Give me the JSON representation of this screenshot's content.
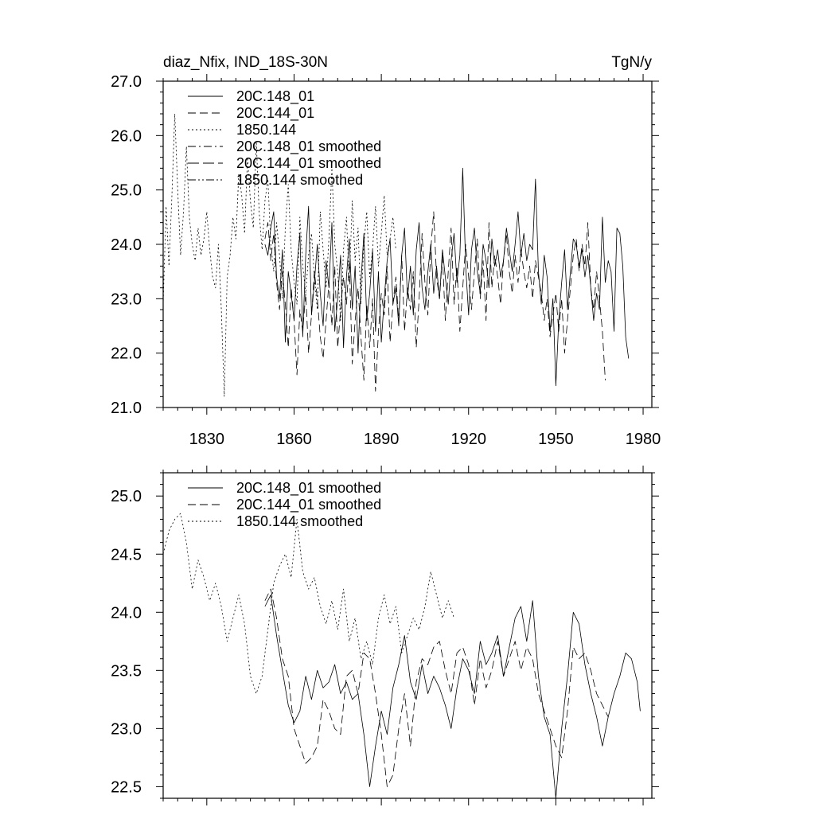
{
  "chart_data": [
    {
      "type": "line",
      "title_left": "diaz_Nfix, IND_18S-30N",
      "title_right": "TgN/y",
      "xlim": [
        1815,
        1983
      ],
      "ylim": [
        21.0,
        27.0
      ],
      "x_ticks": [
        1830,
        1860,
        1890,
        1920,
        1950,
        1980
      ],
      "x_tick_labels": [
        "1830",
        "1860",
        "1890",
        "1920",
        "1950",
        "1980"
      ],
      "y_ticks": [
        21.0,
        22.0,
        23.0,
        24.0,
        25.0,
        26.0,
        27.0
      ],
      "y_tick_labels": [
        "21.0",
        "22.0",
        "23.0",
        "24.0",
        "25.0",
        "26.0",
        "27.0"
      ],
      "legend": [
        {
          "label": "20C.148_01",
          "style": "solid"
        },
        {
          "label": "20C.144_01",
          "style": "dash"
        },
        {
          "label": "1850.144",
          "style": "dot"
        },
        {
          "label": "20C.148_01 smoothed",
          "style": "dashdot"
        },
        {
          "label": "20C.144_01 smoothed",
          "style": "longdash"
        },
        {
          "label": "1850.144 smoothed",
          "style": "dashdotdot"
        }
      ],
      "series": [
        {
          "name": "20C.148_01",
          "style": "solid",
          "x_start": 1850,
          "values": [
            24.0,
            23.8,
            24.3,
            24.6,
            23.4,
            23.0,
            23.9,
            22.2,
            23.5,
            23.1,
            22.6,
            23.6,
            24.2,
            22.3,
            23.8,
            24.7,
            22.7,
            23.3,
            24.0,
            23.1,
            22.5,
            23.7,
            23.2,
            24.4,
            22.4,
            23.0,
            23.8,
            22.1,
            23.4,
            24.1,
            22.8,
            23.6,
            22.0,
            23.3,
            24.2,
            22.6,
            23.1,
            23.9,
            22.4,
            23.5,
            22.2,
            23.0,
            23.7,
            24.1,
            22.9,
            23.2,
            22.5,
            23.8,
            24.3,
            23.0,
            23.6,
            22.7,
            23.9,
            24.4,
            23.2,
            22.8,
            23.5,
            24.0,
            23.1,
            23.6,
            23.0,
            23.9,
            23.4,
            22.9,
            23.7,
            24.2,
            23.3,
            23.8,
            25.4,
            23.6,
            22.7,
            23.9,
            24.3,
            23.5,
            23.1,
            24.0,
            23.7,
            23.2,
            24.1,
            23.6,
            23.9,
            23.4,
            23.7,
            24.3,
            23.9,
            23.5,
            24.0,
            24.6,
            23.8,
            24.2,
            23.7,
            24.0,
            23.9,
            25.2,
            23.5,
            22.9,
            23.8,
            23.4,
            22.4,
            23.0,
            21.4,
            22.6,
            23.3,
            23.9,
            22.8,
            23.5,
            24.1,
            24.0,
            23.6,
            23.9,
            23.4,
            23.8,
            23.2,
            22.6,
            23.1,
            22.8,
            24.5,
            23.3,
            23.7,
            23.5,
            22.4,
            24.3,
            24.2,
            23.6,
            22.3,
            21.9
          ]
        },
        {
          "name": "20C.144_01",
          "style": "dash",
          "x_start": 1850,
          "values": [
            24.1,
            24.4,
            23.7,
            24.2,
            23.3,
            22.8,
            23.5,
            22.9,
            22.1,
            23.2,
            22.6,
            21.6,
            22.8,
            22.4,
            23.1,
            22.0,
            22.7,
            23.5,
            23.0,
            22.3,
            21.9,
            22.6,
            23.3,
            22.5,
            23.6,
            22.1,
            22.8,
            23.4,
            22.9,
            23.7,
            21.8,
            22.6,
            23.2,
            22.3,
            21.5,
            22.9,
            22.1,
            23.0,
            21.3,
            22.4,
            23.1,
            22.7,
            23.6,
            22.2,
            22.9,
            23.4,
            22.6,
            23.8,
            22.4,
            23.2,
            22.8,
            23.5,
            22.1,
            23.0,
            24.2,
            23.3,
            22.7,
            23.9,
            24.6,
            23.4,
            23.0,
            23.8,
            22.6,
            23.5,
            24.3,
            22.9,
            23.6,
            22.4,
            23.2,
            24.0,
            23.4,
            22.8,
            23.5,
            24.1,
            23.0,
            23.7,
            22.6,
            24.4,
            23.2,
            23.8,
            23.4,
            22.9,
            23.7,
            24.2,
            23.5,
            23.1,
            23.8,
            23.3,
            23.9,
            23.5,
            23.2,
            23.6,
            23.0,
            23.7,
            23.4,
            23.1,
            22.6,
            23.0,
            22.3,
            22.7,
            23.1,
            22.4,
            23.0,
            22.0,
            22.6,
            23.2,
            23.8,
            24.1,
            23.5,
            24.0,
            23.6,
            24.4,
            23.2,
            22.8,
            23.5,
            23.0,
            22.4,
            21.5
          ]
        },
        {
          "name": "1850.144",
          "style": "dot",
          "x_start": 1815,
          "values": [
            22.9,
            24.7,
            23.6,
            24.9,
            26.4,
            25.0,
            23.8,
            24.6,
            25.8,
            24.5,
            24.0,
            23.7,
            24.3,
            23.8,
            24.1,
            24.6,
            23.9,
            23.4,
            23.2,
            24.0,
            22.8,
            21.2,
            23.4,
            23.8,
            24.5,
            24.1,
            25.3,
            24.9,
            24.2,
            25.6,
            24.8,
            24.3,
            25.9,
            24.6,
            23.9,
            24.8,
            25.2,
            24.0,
            23.5,
            24.4,
            23.8,
            23.0,
            24.3,
            25.1,
            23.9,
            23.3,
            22.9,
            24.5,
            23.6,
            23.1,
            23.8,
            24.2,
            23.4,
            22.8,
            24.6,
            23.9,
            23.2,
            24.1,
            25.4,
            24.0,
            23.5,
            22.6,
            23.9,
            24.5,
            23.3,
            24.8,
            23.7,
            24.3,
            22.9,
            24.0,
            24.6,
            23.4,
            23.9,
            24.7,
            23.6,
            24.2,
            24.9,
            23.8,
            24.1,
            24.5,
            23.9
          ]
        }
      ]
    },
    {
      "type": "line",
      "xlim": [
        1815,
        1983
      ],
      "ylim": [
        22.4,
        25.2
      ],
      "x_ticks": [
        1830,
        1860,
        1890,
        1920,
        1950,
        1980
      ],
      "y_ticks": [
        22.5,
        23.0,
        23.5,
        24.0,
        24.5,
        25.0
      ],
      "y_tick_labels": [
        "22.5",
        "23.0",
        "23.5",
        "24.0",
        "24.5",
        "25.0"
      ],
      "legend": [
        {
          "label": "20C.148_01 smoothed",
          "style": "solid"
        },
        {
          "label": "20C.144_01 smoothed",
          "style": "dash"
        },
        {
          "label": "1850.144 smoothed",
          "style": "dot"
        }
      ],
      "series": [
        {
          "name": "20C.148_01 smoothed",
          "style": "solid",
          "x": [
            1850,
            1852,
            1854,
            1856,
            1858,
            1860,
            1862,
            1864,
            1866,
            1868,
            1870,
            1872,
            1874,
            1876,
            1878,
            1880,
            1882,
            1884,
            1886,
            1888,
            1890,
            1892,
            1894,
            1896,
            1898,
            1900,
            1902,
            1904,
            1906,
            1908,
            1910,
            1912,
            1914,
            1916,
            1918,
            1920,
            1922,
            1924,
            1926,
            1928,
            1930,
            1932,
            1934,
            1936,
            1938,
            1940,
            1942,
            1944,
            1946,
            1948,
            1950,
            1952,
            1954,
            1956,
            1958,
            1960,
            1962,
            1964,
            1966,
            1968,
            1970,
            1972,
            1974,
            1976,
            1978,
            1979
          ],
          "values": [
            24.05,
            24.15,
            23.8,
            23.5,
            23.2,
            23.05,
            23.15,
            23.45,
            23.25,
            23.5,
            23.35,
            23.4,
            23.55,
            23.3,
            23.4,
            23.25,
            23.3,
            22.95,
            22.5,
            22.85,
            23.15,
            22.95,
            23.35,
            23.55,
            23.8,
            23.4,
            23.25,
            23.55,
            23.3,
            23.45,
            23.35,
            23.2,
            23.0,
            23.35,
            23.6,
            23.5,
            23.3,
            23.75,
            23.55,
            23.65,
            23.8,
            23.45,
            23.7,
            23.95,
            24.05,
            23.75,
            24.1,
            23.45,
            23.1,
            22.95,
            22.4,
            23.0,
            23.45,
            24.0,
            23.9,
            23.55,
            23.3,
            23.1,
            22.85,
            23.1,
            23.3,
            23.45,
            23.65,
            23.6,
            23.4,
            23.15
          ]
        },
        {
          "name": "20C.144_01 smoothed",
          "style": "dash",
          "x": [
            1850,
            1852,
            1854,
            1856,
            1858,
            1860,
            1862,
            1864,
            1866,
            1868,
            1870,
            1872,
            1874,
            1876,
            1878,
            1880,
            1882,
            1884,
            1886,
            1888,
            1890,
            1892,
            1894,
            1896,
            1898,
            1900,
            1902,
            1904,
            1906,
            1908,
            1910,
            1912,
            1914,
            1916,
            1918,
            1920,
            1922,
            1924,
            1926,
            1928,
            1930,
            1932,
            1934,
            1936,
            1938,
            1940,
            1942,
            1944,
            1946,
            1948,
            1950,
            1952,
            1954,
            1956,
            1958,
            1960,
            1962,
            1964,
            1966,
            1968
          ],
          "values": [
            24.1,
            24.2,
            23.95,
            23.6,
            23.45,
            23.0,
            22.85,
            22.7,
            22.75,
            22.85,
            23.25,
            23.15,
            23.0,
            22.95,
            23.45,
            23.5,
            23.3,
            23.65,
            23.6,
            23.3,
            22.95,
            22.5,
            22.6,
            23.0,
            23.3,
            22.85,
            23.4,
            23.6,
            23.55,
            23.7,
            23.75,
            23.5,
            23.3,
            23.65,
            23.7,
            23.55,
            23.2,
            23.6,
            23.35,
            23.5,
            23.75,
            23.45,
            23.6,
            23.75,
            23.5,
            23.7,
            23.6,
            23.3,
            23.15,
            23.0,
            22.85,
            22.75,
            23.15,
            23.7,
            23.6,
            23.65,
            23.5,
            23.3,
            23.2,
            23.1
          ]
        },
        {
          "name": "1850.144 smoothed",
          "style": "dot",
          "x": [
            1815,
            1817,
            1819,
            1821,
            1823,
            1825,
            1827,
            1829,
            1831,
            1833,
            1835,
            1837,
            1839,
            1841,
            1843,
            1845,
            1847,
            1849,
            1851,
            1853,
            1855,
            1857,
            1859,
            1861,
            1863,
            1865,
            1867,
            1869,
            1871,
            1873,
            1875,
            1877,
            1879,
            1881,
            1883,
            1885,
            1887,
            1889,
            1891,
            1893,
            1895,
            1897,
            1899,
            1901,
            1903,
            1905,
            1907,
            1909,
            1911,
            1913,
            1915
          ],
          "values": [
            24.5,
            24.7,
            24.8,
            24.85,
            24.6,
            24.2,
            24.45,
            24.3,
            24.1,
            24.25,
            24.05,
            23.75,
            23.95,
            24.15,
            23.9,
            23.45,
            23.3,
            23.45,
            23.85,
            24.25,
            24.4,
            24.5,
            24.3,
            24.8,
            24.35,
            24.2,
            24.3,
            24.05,
            23.9,
            24.1,
            23.85,
            24.2,
            23.75,
            23.95,
            23.6,
            23.75,
            23.55,
            23.95,
            24.15,
            23.9,
            24.05,
            23.65,
            23.8,
            23.95,
            23.85,
            24.05,
            24.35,
            24.15,
            23.95,
            24.1,
            23.95
          ]
        }
      ]
    }
  ]
}
